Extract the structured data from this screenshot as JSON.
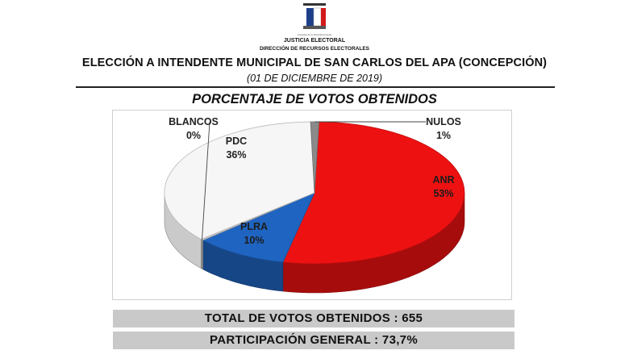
{
  "header": {
    "logo_text": "Justicia Electoral",
    "org_name": "JUSTICIA ELECTORAL",
    "department": "DIRECCIÓN DE RECURSOS ELECTORALES",
    "title": "ELECCIÓN A INTENDENTE MUNICIPAL DE SAN CARLOS DEL APA (CONCEPCIÓN)",
    "date": "(01 DE DICIEMBRE DE 2019)"
  },
  "chart_data": {
    "type": "pie",
    "title": "PORCENTAJE DE VOTOS OBTENIDOS",
    "slices": [
      {
        "name": "ANR",
        "value": 53,
        "label": "53%",
        "color": "#ee1111"
      },
      {
        "name": "PLRA",
        "value": 10,
        "label": "10%",
        "color": "#1f64c0"
      },
      {
        "name": "BLANCOS",
        "value": 0.3,
        "label": "0%",
        "color": "#c8c8c8"
      },
      {
        "name": "PDC",
        "value": 36,
        "label": "36%",
        "color": "#f6f6f6"
      },
      {
        "name": "NULOS",
        "value": 0.9,
        "label": "1%",
        "color": "#8a8a8a"
      }
    ]
  },
  "summary": {
    "total_votes": "TOTAL DE VOTOS OBTENIDOS  : 655",
    "participation": "PARTICIPACIÓN GENERAL  : 73,7%"
  },
  "colors": {
    "accent_red": "#ee1111",
    "accent_blue": "#1f64c0",
    "bar_gray": "#c9c9c9"
  }
}
